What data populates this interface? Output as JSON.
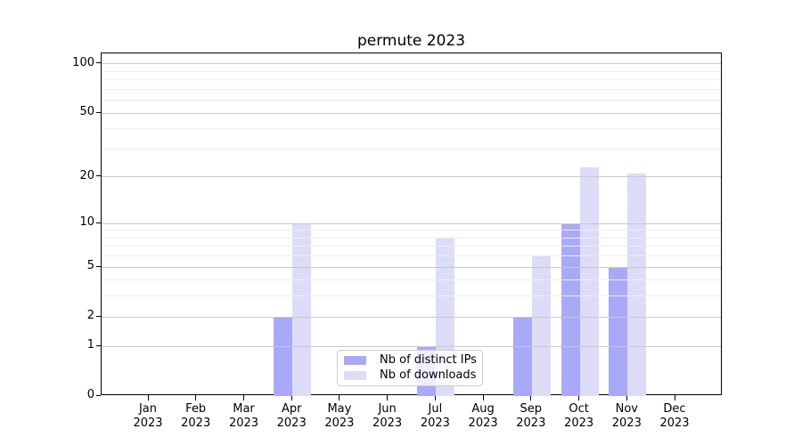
{
  "chart_data": {
    "type": "bar",
    "title": "permute 2023",
    "x_months": [
      "Jan",
      "Feb",
      "Mar",
      "Apr",
      "May",
      "Jun",
      "Jul",
      "Aug",
      "Sep",
      "Oct",
      "Nov",
      "Dec"
    ],
    "x_year": "2023",
    "series": [
      {
        "name": "Nb of distinct IPs",
        "color": "#a9a9f9",
        "values": [
          0,
          0,
          0,
          2,
          0,
          0,
          1,
          0,
          2,
          10,
          5,
          0
        ]
      },
      {
        "name": "Nb of downloads",
        "color": "#dcdcf9",
        "values": [
          0,
          0,
          0,
          10,
          0,
          0,
          8,
          0,
          6,
          23,
          21,
          0
        ]
      }
    ],
    "yscale": "log1p",
    "ylim": [
      0,
      116
    ],
    "yticks": [
      0,
      1,
      2,
      5,
      10,
      20,
      50,
      100
    ],
    "minor_gridline_values": [
      3,
      4,
      6,
      7,
      8,
      9,
      30,
      40,
      60,
      70,
      80,
      90
    ],
    "grid": true,
    "legend_position": "lower center",
    "colors": {
      "grid_major": "#c9c9c9",
      "grid_minor": "#ededed",
      "spine": "#000000",
      "text": "#000000"
    }
  }
}
